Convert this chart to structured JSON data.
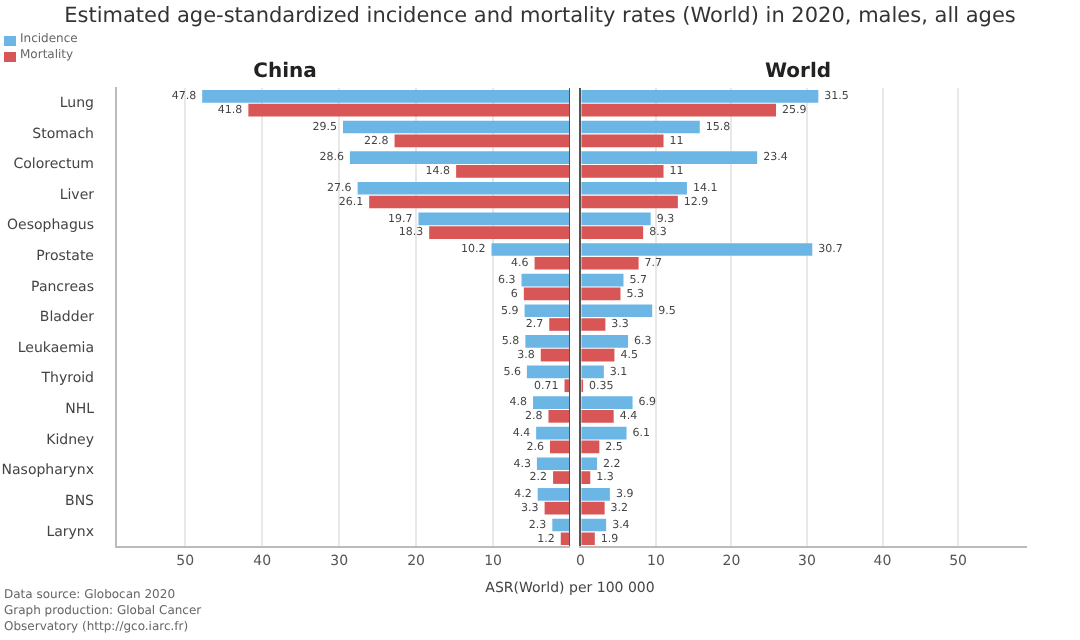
{
  "chart_data": [
    {
      "type": "bar",
      "orientation": "horizontal",
      "title": "Estimated age-standardized incidence and mortality rates (World) in 2020, males, all ages",
      "subtitle": "China",
      "categories": [
        "Lung",
        "Stomach",
        "Colorectum",
        "Liver",
        "Oesophagus",
        "Prostate",
        "Pancreas",
        "Bladder",
        "Leukaemia",
        "Thyroid",
        "NHL",
        "Kidney",
        "Nasopharynx",
        "BNS",
        "Larynx"
      ],
      "series": [
        {
          "name": "Incidence",
          "color": "#6cb6e6",
          "values": [
            47.8,
            29.5,
            28.6,
            27.6,
            19.7,
            10.2,
            6.3,
            5.9,
            5.8,
            5.6,
            4.8,
            4.4,
            4.3,
            4.2,
            2.3
          ]
        },
        {
          "name": "Mortality",
          "color": "#d95656",
          "values": [
            41.8,
            22.8,
            14.8,
            26.1,
            18.3,
            4.6,
            6.0,
            2.7,
            3.8,
            0.71,
            2.8,
            2.6,
            2.2,
            3.3,
            1.2
          ]
        }
      ],
      "xlim": [
        59,
        0
      ],
      "xticks": [
        {
          "value": 0,
          "label": null
        },
        10,
        20,
        30,
        40,
        50
      ],
      "grid": "x",
      "legend": "top left",
      "data_labels": true,
      "annotations": [
        "Data source: Globocan 2020",
        "Graph production: Global Cancer",
        "Observatory (http://gco.iarc.fr)"
      ]
    },
    {
      "type": "bar",
      "orientation": "horizontal",
      "subtitle": "World",
      "xlabel": "ASR(World) per 100 000",
      "categories": [
        null,
        null,
        null,
        null,
        null,
        null,
        null,
        null,
        null,
        null,
        null,
        null,
        null,
        null,
        null
      ],
      "series": [
        {
          "color": "#6cb6e6",
          "values": [
            31.5,
            15.8,
            23.4,
            14.1,
            9.3,
            30.7,
            5.7,
            9.5,
            6.3,
            3.1,
            6.9,
            6.1,
            2.2,
            3.9,
            3.4
          ]
        },
        {
          "color": "#d95656",
          "values": [
            25.9,
            11.0,
            11.0,
            12.9,
            8.3,
            7.7,
            5.3,
            3.3,
            4.5,
            0.35,
            4.4,
            2.5,
            1.3,
            3.2,
            1.9
          ]
        }
      ],
      "xlim": [
        0,
        59
      ],
      "xticks": [
        0,
        10,
        20,
        30,
        40,
        50
      ],
      "grid": "x",
      "tick_labels": "x",
      "data_labels": true
    }
  ]
}
